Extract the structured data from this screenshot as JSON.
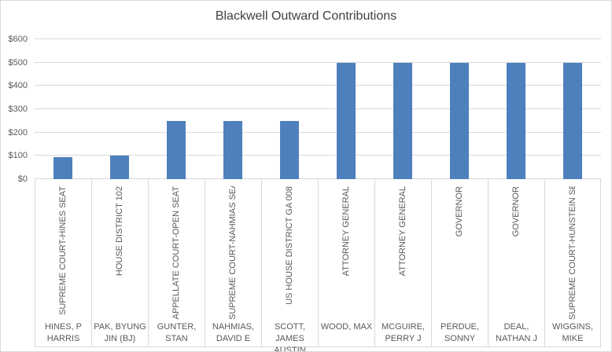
{
  "chart_data": {
    "type": "bar",
    "title": "Blackwell Outward Contributions",
    "categories": [
      "SUPREME COURT-HINES SEAT",
      "HOUSE DISTRICT 102",
      "APPELLATE COURT-OPEN SEAT",
      "SUPREME COURT-NAHMIAS SEAT",
      "US HOUSE DISTRICT GA 008",
      "ATTORNEY GENERAL",
      "ATTORNEY GENERAL",
      "GOVERNOR",
      "GOVERNOR",
      "SUPREME COURT-HUNSTEIN SEAT"
    ],
    "candidates": [
      "HINES, P HARRIS",
      "PAK, BYUNG JIN (BJ)",
      "GUNTER, STAN",
      "NAHMIAS, DAVID E",
      "SCOTT, JAMES AUSTIN",
      "WOOD, MAX",
      "MCGUIRE, PERRY J",
      "PERDUE, SONNY",
      "DEAL, NATHAN J",
      "WIGGINS, MIKE"
    ],
    "candidate_display": [
      "HINES, P\nHARRIS",
      "PAK, BYUNG\nJIN (BJ)",
      "GUNTER,\nSTAN",
      "NAHMIAS,\nDAVID E",
      "SCOTT, JAMES\nAUSTIN",
      "WOOD, MAX",
      "MCGUIRE,\nPERRY J",
      "PERDUE,\nSONNY",
      "DEAL,\nNATHAN J",
      "WIGGINS,\nMIKE"
    ],
    "values": [
      95,
      100,
      250,
      250,
      250,
      500,
      500,
      500,
      500,
      500
    ],
    "xlabel": "",
    "ylabel": "",
    "ylim": [
      0,
      600
    ],
    "ytick_step": 100,
    "ytick_labels": [
      "$0",
      "$100",
      "$200",
      "$300",
      "$400",
      "$500",
      "$600"
    ],
    "grid": true,
    "legend": false,
    "colors": {
      "bar": "#4E80BD",
      "gridline": "#D9D9D9",
      "border": "#D9D9D9",
      "axis_text": "#595959",
      "title_text": "#404040",
      "background": "#FFFFFF"
    }
  }
}
